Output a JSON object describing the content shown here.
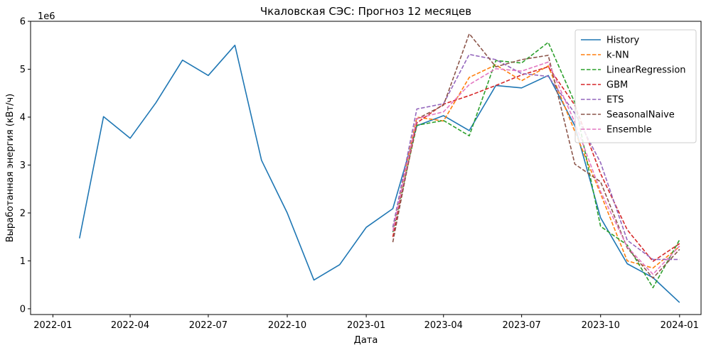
{
  "chart_data": {
    "type": "line",
    "title": "Чкаловская СЭС: Прогноз 12 месяцев",
    "xlabel": "Дата",
    "ylabel": "Выработанная энергия (кВт/ч)",
    "y_offset_label": "1e6",
    "y_scale_factor": 1000000,
    "x_range": [
      "2021-12-06",
      "2024-01-26"
    ],
    "ylim": [
      -120000,
      6000000
    ],
    "x_ticks": [
      "2022-01-01",
      "2022-04-01",
      "2022-07-01",
      "2022-10-01",
      "2023-01-01",
      "2023-04-01",
      "2023-07-01",
      "2023-10-01",
      "2024-01-01"
    ],
    "x_tick_labels": [
      "2022-01",
      "2022-04",
      "2022-07",
      "2022-10",
      "2023-01",
      "2023-04",
      "2023-07",
      "2023-10",
      "2024-01"
    ],
    "y_ticks": [
      0,
      1000000,
      2000000,
      3000000,
      4000000,
      5000000,
      6000000
    ],
    "y_tick_labels": [
      "0",
      "1",
      "2",
      "3",
      "4",
      "5",
      "6"
    ],
    "grid": false,
    "legend_position": "top-right",
    "series": [
      {
        "name": "History",
        "color": "#1f77b4",
        "dash": "solid",
        "x": [
          "2022-02-01",
          "2022-03-01",
          "2022-04-01",
          "2022-05-01",
          "2022-06-01",
          "2022-07-01",
          "2022-08-01",
          "2022-09-01",
          "2022-10-01",
          "2022-11-01",
          "2022-12-01",
          "2023-01-01",
          "2023-02-01",
          "2023-03-01",
          "2023-04-01",
          "2023-05-01",
          "2023-06-01",
          "2023-07-01",
          "2023-08-01",
          "2023-09-01",
          "2023-10-01",
          "2023-11-01",
          "2023-12-01",
          "2024-01-01"
        ],
        "values": [
          1470000,
          4010000,
          3560000,
          4300000,
          5190000,
          4870000,
          5500000,
          3100000,
          2000000,
          600000,
          920000,
          1700000,
          2090000,
          3820000,
          4030000,
          3720000,
          4660000,
          4610000,
          4870000,
          3820000,
          1900000,
          940000,
          650000,
          130000
        ]
      },
      {
        "name": "k-NN",
        "color": "#ff7f0e",
        "dash": "dashed",
        "x": [
          "2023-02-01",
          "2023-03-01",
          "2023-04-01",
          "2023-05-01",
          "2023-06-01",
          "2023-07-01",
          "2023-08-01",
          "2023-09-01",
          "2023-10-01",
          "2023-11-01",
          "2023-12-01",
          "2024-01-01"
        ],
        "values": [
          1700000,
          4000000,
          3920000,
          4830000,
          5090000,
          4760000,
          5070000,
          3700000,
          2400000,
          1000000,
          850000,
          1300000
        ]
      },
      {
        "name": "LinearRegression",
        "color": "#2ca02c",
        "dash": "dashed",
        "x": [
          "2023-02-01",
          "2023-03-01",
          "2023-04-01",
          "2023-05-01",
          "2023-06-01",
          "2023-07-01",
          "2023-08-01",
          "2023-09-01",
          "2023-10-01",
          "2023-11-01",
          "2023-12-01",
          "2024-01-01"
        ],
        "values": [
          1600000,
          3830000,
          3930000,
          3610000,
          5180000,
          5130000,
          5560000,
          4300000,
          1720000,
          1330000,
          440000,
          1440000
        ]
      },
      {
        "name": "GBM",
        "color": "#d62728",
        "dash": "dashed",
        "x": [
          "2023-02-01",
          "2023-03-01",
          "2023-04-01",
          "2023-05-01",
          "2023-06-01",
          "2023-07-01",
          "2023-08-01",
          "2023-09-01",
          "2023-10-01",
          "2023-11-01",
          "2023-12-01",
          "2024-01-01"
        ],
        "values": [
          1500000,
          3880000,
          4270000,
          4450000,
          4660000,
          4880000,
          5050000,
          4250000,
          2820000,
          1650000,
          990000,
          1360000
        ]
      },
      {
        "name": "ETS",
        "color": "#9467bd",
        "dash": "dashed",
        "x": [
          "2023-02-01",
          "2023-03-01",
          "2023-04-01",
          "2023-05-01",
          "2023-06-01",
          "2023-07-01",
          "2023-08-01",
          "2023-09-01",
          "2023-10-01",
          "2023-11-01",
          "2023-12-01",
          "2024-01-01"
        ],
        "values": [
          1700000,
          4170000,
          4280000,
          5310000,
          5200000,
          4910000,
          4850000,
          4080000,
          3050000,
          1430000,
          1030000,
          1030000
        ]
      },
      {
        "name": "SeasonalNaive",
        "color": "#8c564b",
        "dash": "dashed",
        "x": [
          "2023-02-01",
          "2023-03-01",
          "2023-04-01",
          "2023-05-01",
          "2023-06-01",
          "2023-07-01",
          "2023-08-01",
          "2023-09-01",
          "2023-10-01",
          "2023-11-01",
          "2023-12-01",
          "2024-01-01"
        ],
        "values": [
          1390000,
          3960000,
          4250000,
          5740000,
          5050000,
          5200000,
          5290000,
          3020000,
          2650000,
          1270000,
          640000,
          1240000
        ]
      },
      {
        "name": "Ensemble",
        "color": "#e377c2",
        "dash": "dashed",
        "x": [
          "2023-02-01",
          "2023-03-01",
          "2023-04-01",
          "2023-05-01",
          "2023-06-01",
          "2023-07-01",
          "2023-08-01",
          "2023-09-01",
          "2023-10-01",
          "2023-11-01",
          "2023-12-01",
          "2024-01-01"
        ],
        "values": [
          1620000,
          3970000,
          4110000,
          4680000,
          5010000,
          4960000,
          5150000,
          3890000,
          2450000,
          1290000,
          720000,
          1310000
        ]
      }
    ]
  }
}
